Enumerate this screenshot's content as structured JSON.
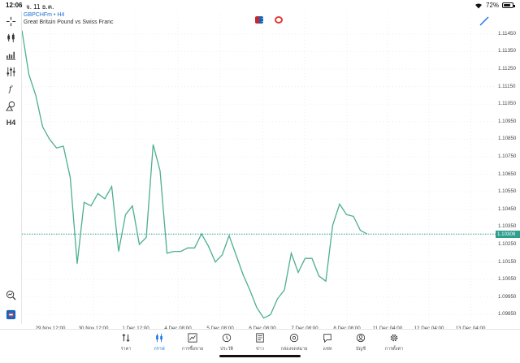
{
  "status_bar": {
    "time": "12:06",
    "date": "จ. 11 ธ.ค.",
    "battery": "72%"
  },
  "symbol": {
    "title": "GBPCHFm • H4",
    "description": "Great Britain Pound vs Swiss Franc"
  },
  "toolbar": {
    "h4_label": "H4"
  },
  "colors": {
    "line": "#4caf8f",
    "current_price": "#2e9e8f",
    "active_tab": "#1a73e8"
  },
  "current_price": "1.10309",
  "chart_data": {
    "type": "line",
    "y_ticks": [
      "1.11450",
      "1.11350",
      "1.11250",
      "1.11150",
      "1.11050",
      "1.10950",
      "1.10850",
      "1.10750",
      "1.10650",
      "1.10550",
      "1.10450",
      "1.10350",
      "1.10250",
      "1.10150",
      "1.10050",
      "1.09950",
      "1.09850"
    ],
    "x_tick_labels": [
      "29 Nov 12:00",
      "30 Nov 12:00",
      "1 Dec 12:00",
      "4 Dec 08:00",
      "5 Dec 08:00",
      "6 Dec 08:00",
      "7 Dec 08:00",
      "8 Dec 08:00",
      "11 Dec 04:00",
      "12 Dec 04:00",
      "13 Dec 04:00"
    ],
    "ylim": [
      1.0981,
      1.115
    ],
    "series": [
      {
        "values": [
          1.1147,
          1.1122,
          1.111,
          1.1092,
          1.1085,
          1.108,
          1.1081,
          1.1063,
          1.1014,
          1.1049,
          1.1047,
          1.1054,
          1.1051,
          1.1058,
          1.1021,
          1.1042,
          1.1047,
          1.1025,
          1.1029,
          1.1082,
          1.1067,
          1.102,
          1.1021,
          1.1021,
          1.1023,
          1.1023,
          1.1031,
          1.1024,
          1.1015,
          1.1019,
          1.103,
          1.1019,
          1.1008,
          1.0999,
          1.0989,
          1.0983,
          1.0985,
          1.0994,
          1.0999,
          1.102,
          1.1009,
          1.1017,
          1.1017,
          1.1007,
          1.1004,
          1.1036,
          1.1048,
          1.1042,
          1.1041,
          1.1033,
          1.10309
        ]
      }
    ]
  },
  "tabs": [
    {
      "label": "ราคา",
      "icon": "quotes-icon"
    },
    {
      "label": "กราฟ",
      "icon": "chart-icon"
    },
    {
      "label": "การซื้อขาย",
      "icon": "trade-icon"
    },
    {
      "label": "ประวัติ",
      "icon": "history-icon"
    },
    {
      "label": "ข่าว",
      "icon": "news-icon"
    },
    {
      "label": "กล่องจดหมาย",
      "icon": "mailbox-icon"
    },
    {
      "label": "แชท",
      "icon": "chat-icon"
    },
    {
      "label": "บัญชี",
      "icon": "account-icon"
    },
    {
      "label": "การตั้งค่า",
      "icon": "settings-icon"
    }
  ]
}
